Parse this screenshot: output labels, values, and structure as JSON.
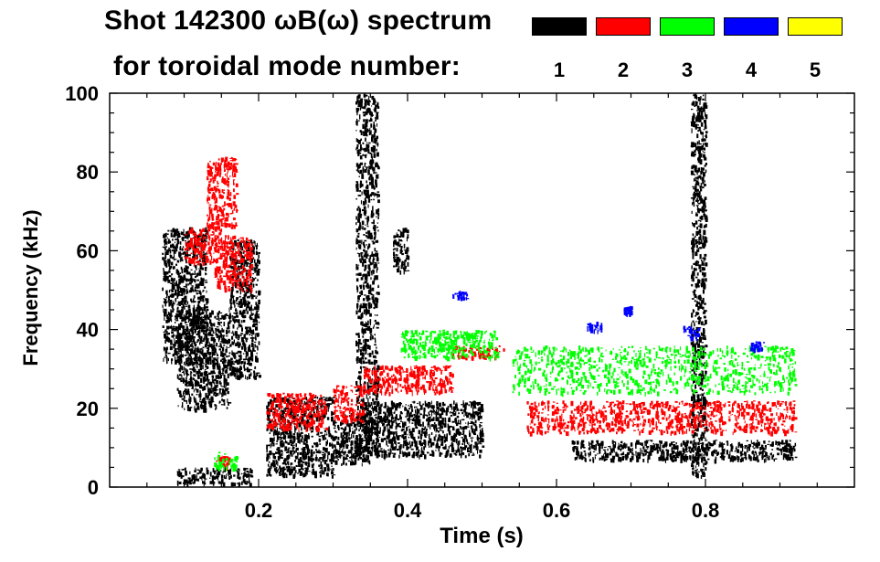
{
  "chart_data": {
    "type": "scatter",
    "title_line1": "Shot 142300 ωB(ω) spectrum",
    "title_line2": "for toroidal mode number:",
    "xlabel": "Time (s)",
    "ylabel": "Frequency (kHz)",
    "xlim": [
      0.0,
      1.0
    ],
    "ylim": [
      0,
      100
    ],
    "xticks": [
      "0.2",
      "0.4",
      "0.6",
      "0.8"
    ],
    "xtick_values": [
      0.2,
      0.4,
      0.6,
      0.8
    ],
    "yticks": [
      "0",
      "20",
      "40",
      "60",
      "80",
      "100"
    ],
    "ytick_values": [
      0,
      20,
      40,
      60,
      80,
      100
    ],
    "grid": false,
    "legend_position": "top-right",
    "series": [
      {
        "name": "1",
        "color": "#000000",
        "regions": [
          {
            "x": [
              0.07,
              0.13
            ],
            "y": [
              32,
              66
            ]
          },
          {
            "x": [
              0.09,
              0.16
            ],
            "y": [
              20,
              45
            ]
          },
          {
            "x": [
              0.09,
              0.19
            ],
            "y": [
              1,
              5
            ]
          },
          {
            "x": [
              0.16,
              0.2
            ],
            "y": [
              28,
              63
            ]
          },
          {
            "x": [
              0.21,
              0.3
            ],
            "y": [
              3,
              23
            ]
          },
          {
            "x": [
              0.3,
              0.35
            ],
            "y": [
              6,
              19
            ]
          },
          {
            "x": [
              0.33,
              0.36
            ],
            "y": [
              8,
              100
            ]
          },
          {
            "x": [
              0.34,
              0.5
            ],
            "y": [
              8,
              22
            ]
          },
          {
            "x": [
              0.38,
              0.4
            ],
            "y": [
              55,
              66
            ]
          },
          {
            "x": [
              0.62,
              0.92
            ],
            "y": [
              7,
              12
            ]
          },
          {
            "x": [
              0.78,
              0.8
            ],
            "y": [
              3,
              100
            ]
          }
        ]
      },
      {
        "name": "2",
        "color": "#ff0000",
        "regions": [
          {
            "x": [
              0.1,
              0.15
            ],
            "y": [
              57,
              66
            ]
          },
          {
            "x": [
              0.14,
              0.19
            ],
            "y": [
              50,
              64
            ]
          },
          {
            "x": [
              0.13,
              0.17
            ],
            "y": [
              66,
              84
            ]
          },
          {
            "x": [
              0.14,
              0.16
            ],
            "y": [
              5,
              8
            ]
          },
          {
            "x": [
              0.21,
              0.29
            ],
            "y": [
              15,
              24
            ]
          },
          {
            "x": [
              0.3,
              0.34
            ],
            "y": [
              17,
              26
            ]
          },
          {
            "x": [
              0.34,
              0.46
            ],
            "y": [
              24,
              31
            ]
          },
          {
            "x": [
              0.46,
              0.53
            ],
            "y": [
              33,
              36
            ]
          },
          {
            "x": [
              0.56,
              0.92
            ],
            "y": [
              14,
              22
            ]
          }
        ]
      },
      {
        "name": "3",
        "color": "#00ff00",
        "regions": [
          {
            "x": [
              0.14,
              0.17
            ],
            "y": [
              5,
              9
            ]
          },
          {
            "x": [
              0.39,
              0.52
            ],
            "y": [
              33,
              40
            ]
          },
          {
            "x": [
              0.54,
              0.92
            ],
            "y": [
              24,
              36
            ]
          }
        ]
      },
      {
        "name": "4",
        "color": "#0000ff",
        "regions": [
          {
            "x": [
              0.46,
              0.48
            ],
            "y": [
              48,
              50
            ]
          },
          {
            "x": [
              0.64,
              0.66
            ],
            "y": [
              40,
              42
            ]
          },
          {
            "x": [
              0.69,
              0.7
            ],
            "y": [
              44,
              46
            ]
          },
          {
            "x": [
              0.77,
              0.79
            ],
            "y": [
              38,
              41
            ]
          },
          {
            "x": [
              0.86,
              0.88
            ],
            "y": [
              35,
              37
            ]
          }
        ]
      },
      {
        "name": "5",
        "color": "#ffff00",
        "regions": []
      }
    ]
  }
}
